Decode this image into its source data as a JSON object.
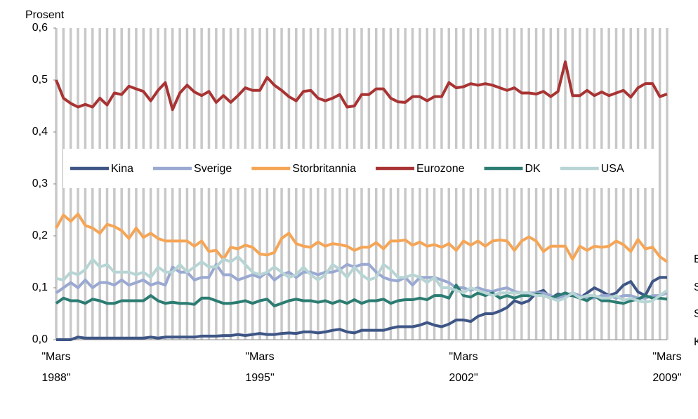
{
  "chart_data": {
    "type": "line",
    "y_label": "Prosent",
    "categories": [
      "\"Mars 1988\"",
      null,
      null,
      null,
      null,
      null,
      null,
      null,
      null,
      null,
      null,
      null,
      null,
      null,
      null,
      null,
      null,
      null,
      null,
      null,
      null,
      null,
      null,
      null,
      null,
      null,
      null,
      null,
      "\"Mars 1995\"",
      null,
      null,
      null,
      null,
      null,
      null,
      null,
      null,
      null,
      null,
      null,
      null,
      null,
      null,
      null,
      null,
      null,
      null,
      null,
      null,
      null,
      null,
      null,
      null,
      null,
      null,
      null,
      "\"Mars 2002\"",
      null,
      null,
      null,
      null,
      null,
      null,
      null,
      null,
      null,
      null,
      null,
      null,
      null,
      null,
      null,
      null,
      null,
      null,
      null,
      null,
      null,
      null,
      null,
      null,
      null,
      null,
      null,
      "\"Mars 2009\""
    ],
    "ylim": [
      0,
      0.6
    ],
    "yticks": [
      {
        "value": 0,
        "label": "0,0"
      },
      {
        "value": 0.1,
        "label": "0,1"
      },
      {
        "value": 0.2,
        "label": "0,2"
      },
      {
        "value": 0.3,
        "label": "0,3"
      },
      {
        "value": 0.4,
        "label": "0,4"
      },
      {
        "value": 0.5,
        "label": "0,5"
      },
      {
        "value": 0.6,
        "label": "0,6"
      }
    ],
    "grid": "vertical",
    "series": [
      {
        "name": "Kina",
        "color": "#3e5686",
        "values": [
          0.0,
          0.0,
          0.0,
          0.005,
          0.003,
          0.003,
          0.003,
          0.003,
          0.003,
          0.003,
          0.003,
          0.003,
          0.003,
          0.005,
          0.003,
          0.005,
          0.005,
          0.005,
          0.005,
          0.005,
          0.007,
          0.007,
          0.007,
          0.008,
          0.008,
          0.01,
          0.008,
          0.01,
          0.012,
          0.01,
          0.01,
          0.012,
          0.013,
          0.012,
          0.015,
          0.015,
          0.013,
          0.015,
          0.018,
          0.02,
          0.015,
          0.013,
          0.018,
          0.018,
          0.018,
          0.018,
          0.022,
          0.025,
          0.025,
          0.025,
          0.028,
          0.033,
          0.028,
          0.025,
          0.03,
          0.038,
          0.038,
          0.035,
          0.045,
          0.05,
          0.05,
          0.055,
          0.062,
          0.075,
          0.07,
          0.075,
          0.09,
          0.095,
          0.08,
          0.088,
          0.085,
          0.085,
          0.08,
          0.09,
          0.1,
          0.093,
          0.085,
          0.09,
          0.105,
          0.112,
          0.092,
          0.085,
          0.112,
          0.12,
          0.12
        ]
      },
      {
        "name": "Sverige",
        "color": "#9aa9d2",
        "values": [
          0.09,
          0.1,
          0.11,
          0.1,
          0.115,
          0.1,
          0.11,
          0.11,
          0.105,
          0.115,
          0.105,
          0.11,
          0.115,
          0.105,
          0.11,
          0.105,
          0.14,
          0.13,
          0.13,
          0.115,
          0.12,
          0.12,
          0.145,
          0.125,
          0.125,
          0.115,
          0.12,
          0.125,
          0.12,
          0.13,
          0.115,
          0.125,
          0.13,
          0.12,
          0.13,
          0.13,
          0.125,
          0.13,
          0.13,
          0.135,
          0.145,
          0.14,
          0.145,
          0.145,
          0.13,
          0.12,
          0.115,
          0.113,
          0.12,
          0.105,
          0.12,
          0.12,
          0.12,
          0.115,
          0.11,
          0.1,
          0.1,
          0.095,
          0.1,
          0.095,
          0.093,
          0.097,
          0.1,
          0.093,
          0.09,
          0.09,
          0.09,
          0.09,
          0.085,
          0.08,
          0.085,
          0.09,
          0.085,
          0.08,
          0.08,
          0.085,
          0.085,
          0.08,
          0.085,
          0.085,
          0.08,
          0.08,
          0.085,
          0.085,
          0.09
        ]
      },
      {
        "name": "Storbritannia",
        "color": "#f5a556",
        "values": [
          0.215,
          0.24,
          0.228,
          0.242,
          0.22,
          0.215,
          0.205,
          0.222,
          0.218,
          0.21,
          0.195,
          0.215,
          0.197,
          0.205,
          0.195,
          0.19,
          0.19,
          0.19,
          0.19,
          0.18,
          0.19,
          0.17,
          0.172,
          0.155,
          0.178,
          0.175,
          0.182,
          0.178,
          0.165,
          0.163,
          0.168,
          0.195,
          0.205,
          0.185,
          0.18,
          0.178,
          0.188,
          0.18,
          0.185,
          0.183,
          0.18,
          0.172,
          0.178,
          0.178,
          0.187,
          0.175,
          0.19,
          0.19,
          0.192,
          0.182,
          0.188,
          0.18,
          0.183,
          0.178,
          0.185,
          0.172,
          0.19,
          0.182,
          0.19,
          0.18,
          0.19,
          0.192,
          0.19,
          0.172,
          0.19,
          0.198,
          0.19,
          0.17,
          0.18,
          0.18,
          0.18,
          0.155,
          0.18,
          0.172,
          0.18,
          0.178,
          0.18,
          0.19,
          0.183,
          0.17,
          0.193,
          0.175,
          0.178,
          0.16,
          0.15
        ]
      },
      {
        "name": "Eurozone",
        "color": "#a93333",
        "values": [
          0.5,
          0.465,
          0.455,
          0.448,
          0.453,
          0.448,
          0.465,
          0.452,
          0.475,
          0.472,
          0.488,
          0.483,
          0.478,
          0.46,
          0.48,
          0.495,
          0.443,
          0.475,
          0.49,
          0.477,
          0.47,
          0.478,
          0.457,
          0.47,
          0.457,
          0.47,
          0.485,
          0.48,
          0.48,
          0.505,
          0.49,
          0.48,
          0.468,
          0.46,
          0.478,
          0.48,
          0.465,
          0.46,
          0.465,
          0.472,
          0.448,
          0.45,
          0.472,
          0.472,
          0.483,
          0.483,
          0.465,
          0.458,
          0.457,
          0.468,
          0.468,
          0.46,
          0.468,
          0.468,
          0.495,
          0.485,
          0.487,
          0.493,
          0.49,
          0.493,
          0.49,
          0.485,
          0.48,
          0.485,
          0.475,
          0.475,
          0.473,
          0.478,
          0.468,
          0.478,
          0.535,
          0.47,
          0.47,
          0.48,
          0.47,
          0.477,
          0.47,
          0.475,
          0.48,
          0.467,
          0.485,
          0.493,
          0.493,
          0.468,
          0.473
        ]
      },
      {
        "name": "DK",
        "color": "#2b7c72",
        "values": [
          0.07,
          0.08,
          0.075,
          0.075,
          0.07,
          0.078,
          0.075,
          0.07,
          0.07,
          0.075,
          0.075,
          0.075,
          0.075,
          0.085,
          0.075,
          0.07,
          0.072,
          0.07,
          0.07,
          0.068,
          0.08,
          0.08,
          0.075,
          0.07,
          0.07,
          0.072,
          0.075,
          0.07,
          0.075,
          0.078,
          0.065,
          0.07,
          0.075,
          0.078,
          0.075,
          0.075,
          0.072,
          0.075,
          0.07,
          0.075,
          0.07,
          0.077,
          0.07,
          0.075,
          0.075,
          0.078,
          0.07,
          0.075,
          0.077,
          0.077,
          0.08,
          0.077,
          0.085,
          0.085,
          0.08,
          0.105,
          0.085,
          0.082,
          0.09,
          0.085,
          0.09,
          0.08,
          0.085,
          0.08,
          0.085,
          0.085,
          0.088,
          0.085,
          0.08,
          0.085,
          0.09,
          0.085,
          0.08,
          0.075,
          0.085,
          0.075,
          0.075,
          0.072,
          0.07,
          0.075,
          0.078,
          0.085,
          0.08,
          0.08,
          0.078
        ]
      },
      {
        "name": "USA",
        "color": "#b8d5d5",
        "values": [
          0.118,
          0.115,
          0.13,
          0.125,
          0.135,
          0.155,
          0.14,
          0.145,
          0.13,
          0.13,
          0.13,
          0.125,
          0.13,
          0.12,
          0.14,
          0.13,
          0.13,
          0.145,
          0.13,
          0.14,
          0.15,
          0.14,
          0.14,
          0.155,
          0.15,
          0.16,
          0.145,
          0.13,
          0.125,
          0.13,
          0.14,
          0.13,
          0.12,
          0.125,
          0.14,
          0.125,
          0.115,
          0.125,
          0.145,
          0.135,
          0.12,
          0.14,
          0.125,
          0.115,
          0.12,
          0.145,
          0.135,
          0.12,
          0.12,
          0.125,
          0.12,
          0.11,
          0.12,
          0.1,
          0.1,
          0.095,
          0.09,
          0.1,
          0.095,
          0.09,
          0.085,
          0.09,
          0.09,
          0.09,
          0.09,
          0.09,
          0.085,
          0.085,
          0.08,
          0.075,
          0.08,
          0.09,
          0.08,
          0.085,
          0.085,
          0.08,
          0.08,
          0.085,
          0.075,
          0.08,
          0.075,
          0.072,
          0.075,
          0.085,
          0.095
        ]
      }
    ],
    "annotations": [
      "E",
      "S",
      "S",
      "K"
    ]
  }
}
